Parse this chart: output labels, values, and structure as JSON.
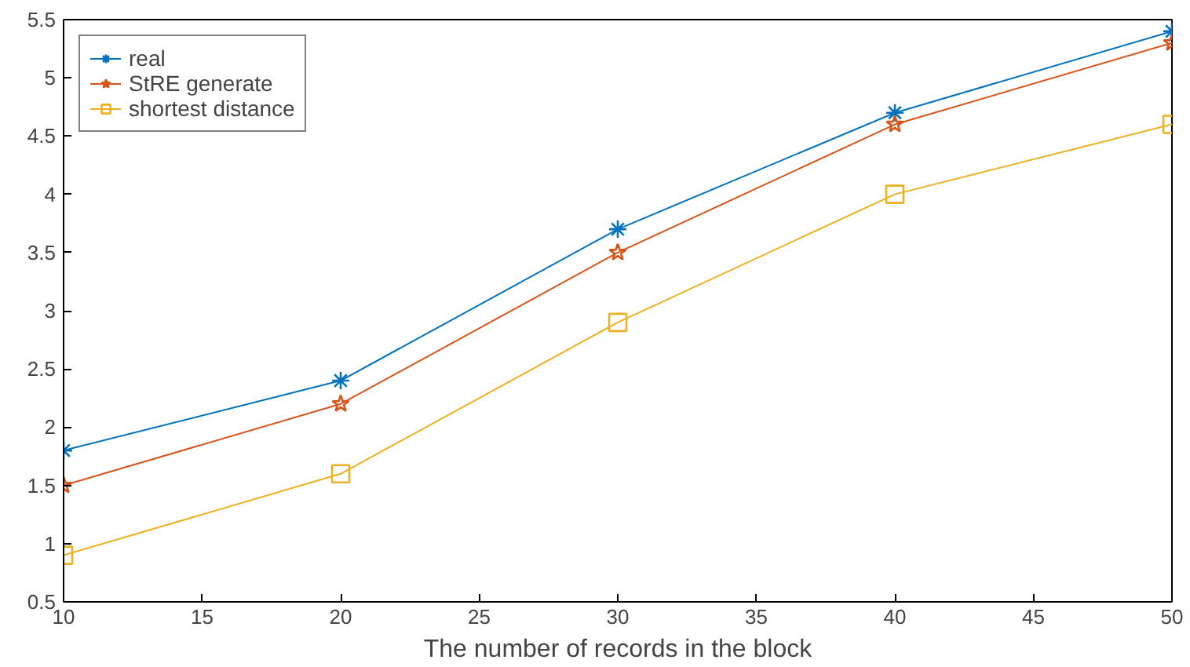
{
  "chart_data": {
    "type": "line",
    "xlabel": "The number of records in the block",
    "x": [
      10,
      20,
      30,
      40,
      50
    ],
    "series": [
      {
        "name": "real",
        "color": "#0072bd",
        "marker": "cross",
        "values": [
          1.8,
          2.4,
          3.7,
          4.7,
          5.4
        ]
      },
      {
        "name": "StRE generate",
        "color": "#d95319",
        "marker": "star",
        "values": [
          1.5,
          2.2,
          3.5,
          4.6,
          5.3
        ]
      },
      {
        "name": "shortest distance",
        "color": "#edb120",
        "marker": "square",
        "values": [
          0.9,
          1.6,
          2.9,
          4.0,
          4.6
        ]
      }
    ],
    "xlim": [
      10,
      50
    ],
    "xticks": [
      10,
      15,
      20,
      25,
      30,
      35,
      40,
      45,
      50
    ],
    "ylim": [
      0.5,
      5.5
    ],
    "yticks": [
      0.5,
      1,
      1.5,
      2,
      2.5,
      3,
      3.5,
      4,
      4.5,
      5,
      5.5
    ],
    "grid": false,
    "legend": "top left",
    "line_style": "solid"
  }
}
